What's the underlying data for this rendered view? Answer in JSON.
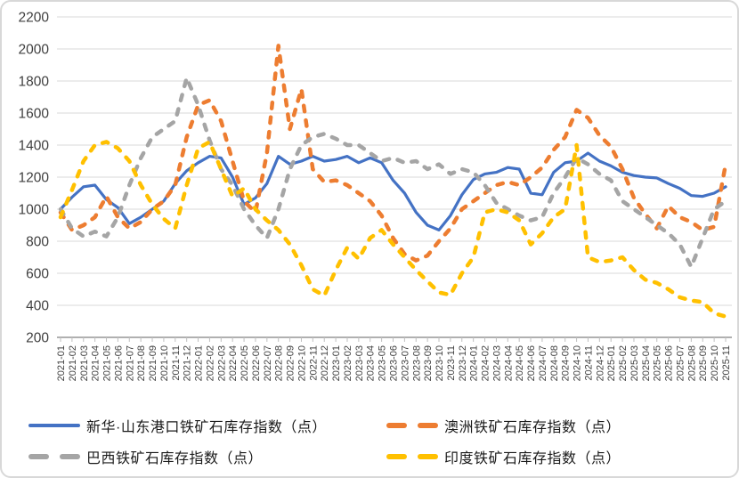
{
  "chart_data": {
    "type": "line",
    "title": "",
    "xlabel": "",
    "ylabel": "",
    "ylim": [
      200,
      2200
    ],
    "yticks": [
      "2200",
      "2000",
      "1800",
      "1600",
      "1400",
      "1200",
      "1000",
      "800",
      "600",
      "400",
      "200"
    ],
    "grid": "horizontal",
    "legend_position": "bottom",
    "x": [
      "2021-01",
      "2021-02",
      "2021-03",
      "2021-04",
      "2021-05",
      "2021-06",
      "2021-07",
      "2021-08",
      "2021-09",
      "2021-10",
      "2021-11",
      "2021-12",
      "2022-01",
      "2022-02",
      "2022-03",
      "2022-04",
      "2022-05",
      "2022-06",
      "2022-07",
      "2022-08",
      "2022-09",
      "2022-10",
      "2022-11",
      "2022-12",
      "2023-01",
      "2023-02",
      "2023-03",
      "2023-04",
      "2023-05",
      "2023-06",
      "2023-07",
      "2023-08",
      "2023-09",
      "2023-10",
      "2023-11",
      "2023-12",
      "2024-01",
      "2024-02",
      "2024-03",
      "2024-04",
      "2024-05",
      "2024-06",
      "2024-07",
      "2024-08",
      "2024-09",
      "2024-10",
      "2024-11",
      "2024-12",
      "2025-01",
      "2025-02",
      "2025-03",
      "2025-04",
      "2025-05",
      "2025-06",
      "2025-07",
      "2025-08",
      "2025-09",
      "2025-10",
      "2025-11"
    ],
    "series": [
      {
        "name": "新华·山东港口铁矿石库存指数（点）",
        "color": "#4472C4",
        "style": "solid",
        "values": [
          1000,
          1075,
          1140,
          1150,
          1060,
          1010,
          910,
          950,
          1000,
          1050,
          1160,
          1240,
          1290,
          1330,
          1320,
          1200,
          1030,
          1070,
          1160,
          1330,
          1280,
          1300,
          1330,
          1300,
          1310,
          1330,
          1290,
          1320,
          1290,
          1180,
          1100,
          980,
          900,
          870,
          960,
          1090,
          1185,
          1220,
          1230,
          1260,
          1250,
          1100,
          1090,
          1230,
          1290,
          1300,
          1350,
          1300,
          1270,
          1230,
          1210,
          1200,
          1195,
          1160,
          1130,
          1085,
          1080,
          1100,
          1140
        ]
      },
      {
        "name": "澳洲铁矿石库存指数（点）",
        "color": "#ED7D31",
        "style": "dashed",
        "values": [
          980,
          870,
          900,
          950,
          1080,
          950,
          880,
          920,
          1000,
          1050,
          1150,
          1450,
          1650,
          1680,
          1550,
          1300,
          1050,
          980,
          1350,
          2020,
          1500,
          1750,
          1250,
          1170,
          1180,
          1150,
          1100,
          1050,
          960,
          820,
          720,
          680,
          710,
          800,
          880,
          1000,
          1050,
          1100,
          1150,
          1170,
          1150,
          1200,
          1260,
          1370,
          1450,
          1620,
          1570,
          1460,
          1390,
          1250,
          1070,
          970,
          880,
          1020,
          950,
          920,
          870,
          890,
          1280
        ]
      },
      {
        "name": "巴西铁矿石库存指数（点）",
        "color": "#A5A5A5",
        "style": "dashed",
        "values": [
          1000,
          880,
          830,
          860,
          830,
          950,
          1150,
          1320,
          1450,
          1500,
          1550,
          1820,
          1650,
          1430,
          1250,
          1150,
          1000,
          900,
          820,
          1000,
          1250,
          1400,
          1450,
          1470,
          1440,
          1400,
          1400,
          1350,
          1300,
          1320,
          1290,
          1300,
          1250,
          1280,
          1220,
          1250,
          1230,
          1150,
          1040,
          1000,
          960,
          930,
          950,
          1100,
          1200,
          1320,
          1280,
          1220,
          1180,
          1050,
          1000,
          950,
          900,
          850,
          780,
          640,
          820,
          1000,
          1050
        ]
      },
      {
        "name": "印度铁矿石库存指数（点）",
        "color": "#FFC000",
        "style": "dashed",
        "values": [
          950,
          1120,
          1300,
          1400,
          1420,
          1380,
          1300,
          1150,
          1030,
          940,
          880,
          1150,
          1380,
          1420,
          1250,
          1080,
          1130,
          1000,
          930,
          870,
          780,
          650,
          500,
          460,
          620,
          760,
          690,
          820,
          870,
          780,
          700,
          620,
          550,
          480,
          465,
          600,
          700,
          980,
          1000,
          980,
          930,
          780,
          850,
          950,
          1000,
          1400,
          700,
          670,
          680,
          700,
          620,
          560,
          540,
          500,
          450,
          430,
          420,
          350,
          330
        ]
      }
    ],
    "axis_color": "#808080",
    "gridline_color": "#d9d9d9",
    "tick_label_color": "#404040"
  }
}
